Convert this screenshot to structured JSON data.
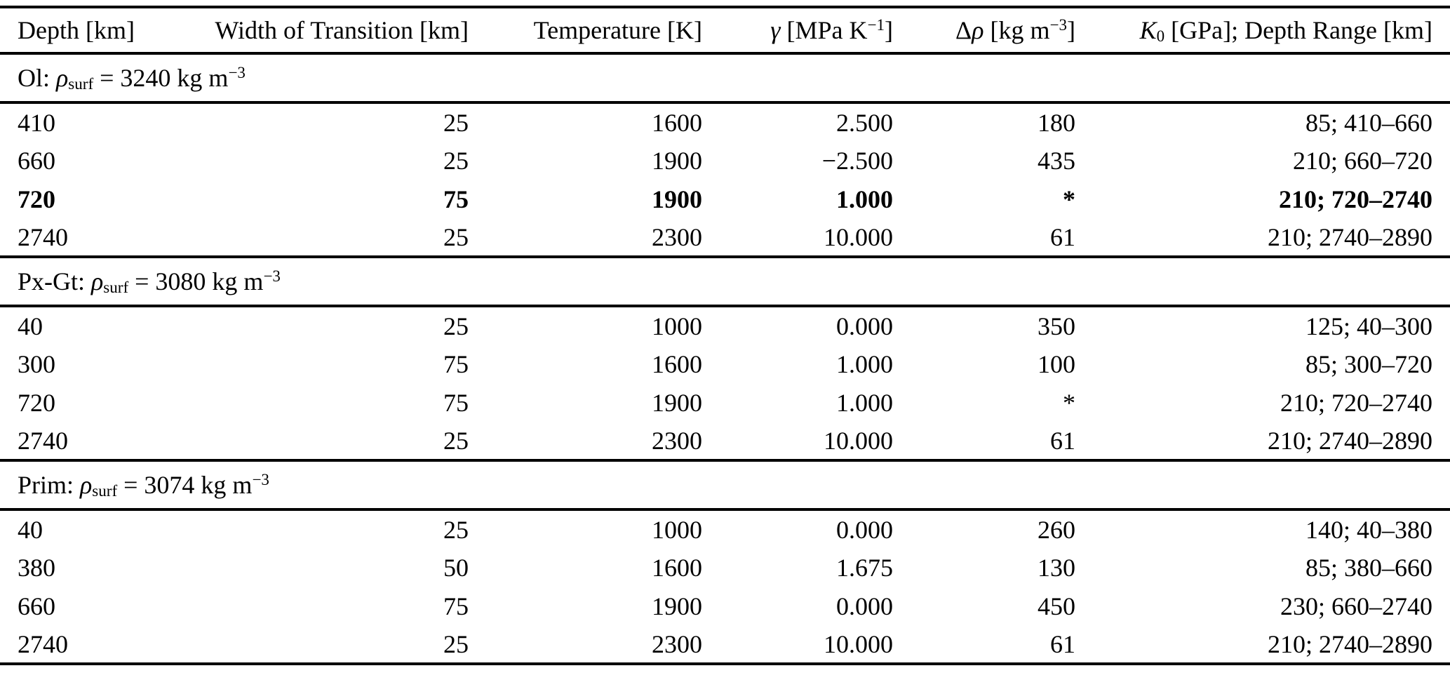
{
  "colors": {
    "background": "#ffffff",
    "text": "#000000",
    "rules": "#000000"
  },
  "table": {
    "columns": {
      "depth": {
        "label": "Depth [km]"
      },
      "width": {
        "label": "Width of Transition [km]"
      },
      "temperature": {
        "label": "Temperature [K]"
      },
      "gamma": {
        "symbol": "γ",
        "unit_open": "[MPa K",
        "unit_exp": "−1",
        "unit_close": "]"
      },
      "delta_rho": {
        "delta": "Δ",
        "rho": "ρ",
        "unit_open": "[kg m",
        "unit_exp": "−3",
        "unit_close": "]"
      },
      "k0": {
        "symbol": "K",
        "subscript": "0",
        "rest": "[GPa]; Depth Range [km]"
      }
    },
    "sections": [
      {
        "title": {
          "name": "Ol:",
          "rho": "ρ",
          "rho_sub": "surf",
          "value": "= 3240 kg m",
          "exp": "−3"
        },
        "rows": [
          {
            "depth": "410",
            "width": "25",
            "temperature": "1600",
            "gamma": "2.500",
            "delta_rho": "180",
            "k0_range": "85; 410–660",
            "bold": false
          },
          {
            "depth": "660",
            "width": "25",
            "temperature": "1900",
            "gamma": "−2.500",
            "delta_rho": "435",
            "k0_range": "210; 660–720",
            "bold": false
          },
          {
            "depth": "720",
            "width": "75",
            "temperature": "1900",
            "gamma": "1.000",
            "delta_rho": "*",
            "k0_range": "210; 720–2740",
            "bold": true
          },
          {
            "depth": "2740",
            "width": "25",
            "temperature": "2300",
            "gamma": "10.000",
            "delta_rho": "61",
            "k0_range": "210; 2740–2890",
            "bold": false
          }
        ]
      },
      {
        "title": {
          "name": "Px-Gt:",
          "rho": "ρ",
          "rho_sub": "surf",
          "value": "= 3080 kg m",
          "exp": "−3"
        },
        "rows": [
          {
            "depth": "40",
            "width": "25",
            "temperature": "1000",
            "gamma": "0.000",
            "delta_rho": "350",
            "k0_range": "125; 40–300",
            "bold": false
          },
          {
            "depth": "300",
            "width": "75",
            "temperature": "1600",
            "gamma": "1.000",
            "delta_rho": "100",
            "k0_range": "85; 300–720",
            "bold": false
          },
          {
            "depth": "720",
            "width": "75",
            "temperature": "1900",
            "gamma": "1.000",
            "delta_rho": "*",
            "k0_range": "210; 720–2740",
            "bold": false
          },
          {
            "depth": "2740",
            "width": "25",
            "temperature": "2300",
            "gamma": "10.000",
            "delta_rho": "61",
            "k0_range": "210; 2740–2890",
            "bold": false
          }
        ]
      },
      {
        "title": {
          "name": "Prim:",
          "rho": "ρ",
          "rho_sub": "surf",
          "value": "= 3074 kg m",
          "exp": "−3"
        },
        "rows": [
          {
            "depth": "40",
            "width": "25",
            "temperature": "1000",
            "gamma": "0.000",
            "delta_rho": "260",
            "k0_range": "140; 40–380",
            "bold": false
          },
          {
            "depth": "380",
            "width": "50",
            "temperature": "1600",
            "gamma": "1.675",
            "delta_rho": "130",
            "k0_range": "85; 380–660",
            "bold": false
          },
          {
            "depth": "660",
            "width": "75",
            "temperature": "1900",
            "gamma": "0.000",
            "delta_rho": "450",
            "k0_range": "230; 660–2740",
            "bold": false
          },
          {
            "depth": "2740",
            "width": "25",
            "temperature": "2300",
            "gamma": "10.000",
            "delta_rho": "61",
            "k0_range": "210; 2740–2890",
            "bold": false
          }
        ]
      }
    ]
  }
}
